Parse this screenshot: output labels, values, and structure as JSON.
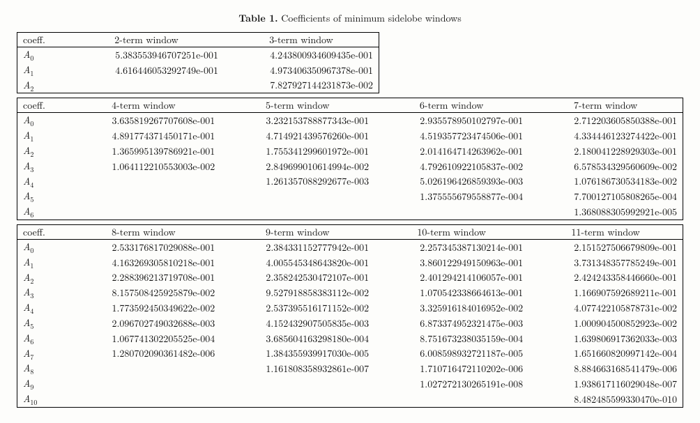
{
  "caption": {
    "label": "Table 1.",
    "text": "Coefficients of minimum sidelobe windows"
  },
  "coeff_header": "coeff.",
  "coeff_labels": [
    "A0",
    "A1",
    "A2",
    "A3",
    "A4",
    "A5",
    "A6",
    "A7",
    "A8",
    "A9",
    "A10"
  ],
  "blocks": [
    {
      "width": "narrow",
      "columns": [
        "2-term window",
        "3-term window"
      ],
      "rows": 3,
      "data": [
        [
          "5.383553946707251e-001",
          "4.243800934609435e-001"
        ],
        [
          "4.616446053292749e-001",
          "4.973406350967378e-001"
        ],
        [
          "",
          "7.827927144231873e-002"
        ]
      ]
    },
    {
      "width": "wide",
      "columns": [
        "4-term window",
        "5-term window",
        "6-term window",
        "7-term window"
      ],
      "rows": 7,
      "data": [
        [
          "3.635819267707608e-001",
          "3.232153788877343e-001",
          "2.935578950102797e-001",
          "2.712203605850388e-001"
        ],
        [
          "4.891774371450171e-001",
          "4.714921439576260e-001",
          "4.519357723474506e-001",
          "4.334446123274422e-001"
        ],
        [
          "1.365995139786921e-001",
          "1.755341299601972e-001",
          "2.014164714263962e-001",
          "2.180041228929303e-001"
        ],
        [
          "1.064112210553003e-002",
          "2.849699010614994e-002",
          "4.792610922105837e-002",
          "6.578534329560609e-002"
        ],
        [
          "",
          "1.261357088292677e-003",
          "5.026196426859393e-003",
          "1.076186730534183e-002"
        ],
        [
          "",
          "",
          "1.375555679558877e-004",
          "7.700127105808265e-004"
        ],
        [
          "",
          "",
          "",
          "1.368088305992921e-005"
        ]
      ]
    },
    {
      "width": "wide",
      "columns": [
        "8-term window",
        "9-term window",
        "10-term window",
        "11-term window"
      ],
      "rows": 11,
      "data": [
        [
          "2.533176817029088e-001",
          "2.384331152777942e-001",
          "2.257345387130214e-001",
          "2.151527506679809e-001"
        ],
        [
          "4.163269305810218e-001",
          "4.005545348643820e-001",
          "3.860122949150963e-001",
          "3.731348357785249e-001"
        ],
        [
          "2.288396213719708e-001",
          "2.358242530472107e-001",
          "2.401294214106057e-001",
          "2.424243358446660e-001"
        ],
        [
          "8.157508425925879e-002",
          "9.527918858383112e-002",
          "1.070542338664613e-001",
          "1.166907592689211e-001"
        ],
        [
          "1.773592450349622e-002",
          "2.537395516171152e-002",
          "3.325916184016952e-002",
          "4.077422105878731e-002"
        ],
        [
          "2.096702749032688e-003",
          "4.152432907505835e-003",
          "6.873374952321475e-003",
          "1.000904500852923e-002"
        ],
        [
          "1.067741302205525e-004",
          "3.685604163298180e-004",
          "8.751673238035159e-004",
          "1.639806917362033e-003"
        ],
        [
          "1.280702090361482e-006",
          "1.384355939917030e-005",
          "6.008598932721187e-005",
          "1.651660820997142e-004"
        ],
        [
          "",
          "1.161808358932861e-007",
          "1.710716472110202e-006",
          "8.884663168541479e-006"
        ],
        [
          "",
          "",
          "1.027272130265191e-008",
          "1.938617116029048e-007"
        ],
        [
          "",
          "",
          "",
          "8.482485599330470e-010"
        ]
      ]
    }
  ]
}
